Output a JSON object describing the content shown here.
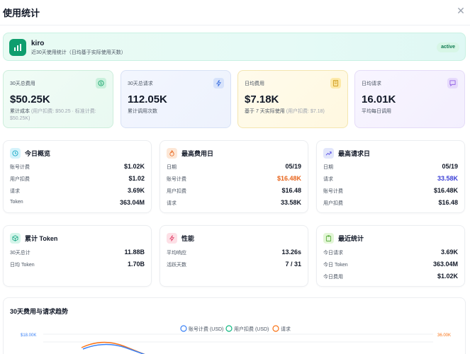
{
  "window": {
    "title": "使用统计",
    "close_icon": "close-icon"
  },
  "banner": {
    "name": "kiro",
    "subtitle": "近30天使用统计（日均基于实际使用天数）",
    "badge": "active",
    "icon": "bar-chart-icon"
  },
  "stats": [
    {
      "label": "30天总费用",
      "value": "$50.25K",
      "desc": "累计成本",
      "desc_muted": "(用户扣费: $50.25 · 标准计费: $50.25K)",
      "icon": "dollar-icon",
      "color": "#15a46a"
    },
    {
      "label": "30天总请求",
      "value": "112.05K",
      "desc": "累计调用次数",
      "desc_muted": "",
      "icon": "bolt-icon",
      "color": "#3b6fe0"
    },
    {
      "label": "日均费用",
      "value": "$7.18K",
      "desc": "基于 7 天实际使用",
      "desc_muted": "(用户扣费: $7.18)",
      "icon": "calculator-icon",
      "color": "#c9920c"
    },
    {
      "label": "日均请求",
      "value": "16.01K",
      "desc": "平均每日调用",
      "desc_muted": "",
      "icon": "chat-icon",
      "color": "#8a56e2"
    }
  ],
  "cards": {
    "today": {
      "title": "今日概览",
      "icon": "clock-icon",
      "rows": [
        {
          "k": "账号计费",
          "v": "$1.02K"
        },
        {
          "k": "用户扣费",
          "v": "$1.02"
        },
        {
          "k": "请求",
          "v": "3.69K"
        },
        {
          "k": "Token",
          "v": "363.04M"
        }
      ]
    },
    "max_cost": {
      "title": "最高费用日",
      "icon": "flame-icon",
      "rows": [
        {
          "k": "日期",
          "v": "05/19"
        },
        {
          "k": "账号计费",
          "v": "$16.48K"
        },
        {
          "k": "用户扣费",
          "v": "$16.48"
        },
        {
          "k": "请求",
          "v": "33.58K"
        }
      ]
    },
    "max_req": {
      "title": "最高请求日",
      "icon": "trending-up-icon",
      "rows": [
        {
          "k": "日期",
          "v": "05/19"
        },
        {
          "k": "请求",
          "v": "33.58K"
        },
        {
          "k": "账号计费",
          "v": "$16.48K"
        },
        {
          "k": "用户扣费",
          "v": "$16.48"
        }
      ]
    },
    "tokens": {
      "title": "累计 Token",
      "icon": "cube-icon",
      "rows": [
        {
          "k": "30天总计",
          "v": "11.88B"
        },
        {
          "k": "日均 Token",
          "v": "1.70B"
        }
      ]
    },
    "perf": {
      "title": "性能",
      "icon": "lightning-icon",
      "rows": [
        {
          "k": "平均响应",
          "v": "13.26s"
        },
        {
          "k": "活跃天数",
          "v": "7 / 31"
        }
      ]
    },
    "recent": {
      "title": "最近统计",
      "icon": "clipboard-icon",
      "rows": [
        {
          "k": "今日请求",
          "v": "3.69K"
        },
        {
          "k": "今日 Token",
          "v": "363.04M"
        },
        {
          "k": "今日费用",
          "v": "$1.02K"
        }
      ]
    }
  },
  "highlight_colors": {
    "cost": "#e8641b",
    "requests": "#3b3fd6"
  },
  "chart_data": {
    "type": "line",
    "title": "30天费用与请求趋势",
    "legend": [
      {
        "name": "账号计费 (USD)",
        "color": "#3b82f6"
      },
      {
        "name": "用户扣费 (USD)",
        "color": "#10b981"
      },
      {
        "name": "请求",
        "color": "#f97316"
      }
    ],
    "left_axis_top_tick": "$18.00K",
    "right_axis_top_tick": "36.00K",
    "legend_placement": "top-center"
  }
}
